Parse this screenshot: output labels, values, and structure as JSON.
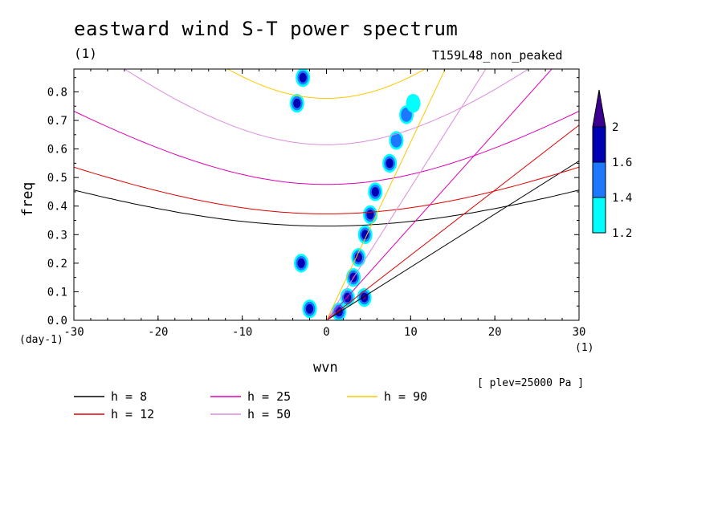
{
  "figure": {
    "title": "eastward wind S-T power spectrum",
    "subtitle_unit": "(1)",
    "run_name": "T159L48_non_peaked",
    "plev": "[ plev=25000 Pa ]"
  },
  "chart_data": {
    "type": "heatmap",
    "title": "eastward wind S-T power spectrum",
    "xlabel": "wvn",
    "xunit": "(1)",
    "ylabel": "freq",
    "yunit": "(day-1)",
    "xlim": [
      -30,
      30
    ],
    "ylim": [
      0,
      0.88
    ],
    "xticks": [
      -30,
      -20,
      -10,
      0,
      10,
      20,
      30
    ],
    "xtick_labels": [
      "-30",
      "-20",
      "-10",
      "0",
      "10",
      "20",
      "30"
    ],
    "yticks": [
      0,
      0.1,
      0.2,
      0.3,
      0.4,
      0.5,
      0.6,
      0.7,
      0.8
    ],
    "ytick_labels": [
      "0.0",
      "0.1",
      "0.2",
      "0.3",
      "0.4",
      "0.5",
      "0.6",
      "0.7",
      "0.8"
    ],
    "colorbar": {
      "levels": [
        1.2,
        1.4,
        1.6,
        2
      ],
      "labels": [
        "1.2",
        "1.4",
        "1.6",
        "2"
      ],
      "colors": [
        "#00ffff",
        "#1e78ff",
        "#0000b4",
        "#3c0090"
      ]
    },
    "dispersion_curves": [
      {
        "name": "h =  8",
        "h": 8,
        "color": "#000000"
      },
      {
        "name": "h = 12",
        "h": 12,
        "color": "#e00000"
      },
      {
        "name": "h = 25",
        "h": 25,
        "color": "#dd00b4"
      },
      {
        "name": "h = 50",
        "h": 50,
        "color": "#dc8cdc"
      },
      {
        "name": "h = 90",
        "h": 90,
        "color": "#ffc800"
      }
    ],
    "power_blobs": [
      {
        "x": 1.5,
        "y": 0.03,
        "level": 3
      },
      {
        "x": 2.5,
        "y": 0.08,
        "level": 3
      },
      {
        "x": 3.2,
        "y": 0.15,
        "level": 3
      },
      {
        "x": 3.8,
        "y": 0.22,
        "level": 3
      },
      {
        "x": 4.6,
        "y": 0.3,
        "level": 2
      },
      {
        "x": 5.2,
        "y": 0.37,
        "level": 2
      },
      {
        "x": 5.8,
        "y": 0.45,
        "level": 2
      },
      {
        "x": 7.5,
        "y": 0.55,
        "level": 2
      },
      {
        "x": 8.3,
        "y": 0.63,
        "level": 1
      },
      {
        "x": 9.5,
        "y": 0.72,
        "level": 1
      },
      {
        "x": 10.3,
        "y": 0.76,
        "level": 0
      },
      {
        "x": -3.5,
        "y": 0.76,
        "level": 2
      },
      {
        "x": -2.8,
        "y": 0.85,
        "level": 2
      },
      {
        "x": -3,
        "y": 0.2,
        "level": 2
      },
      {
        "x": -2,
        "y": 0.04,
        "level": 2
      },
      {
        "x": 4.5,
        "y": 0.08,
        "level": 3
      }
    ]
  }
}
